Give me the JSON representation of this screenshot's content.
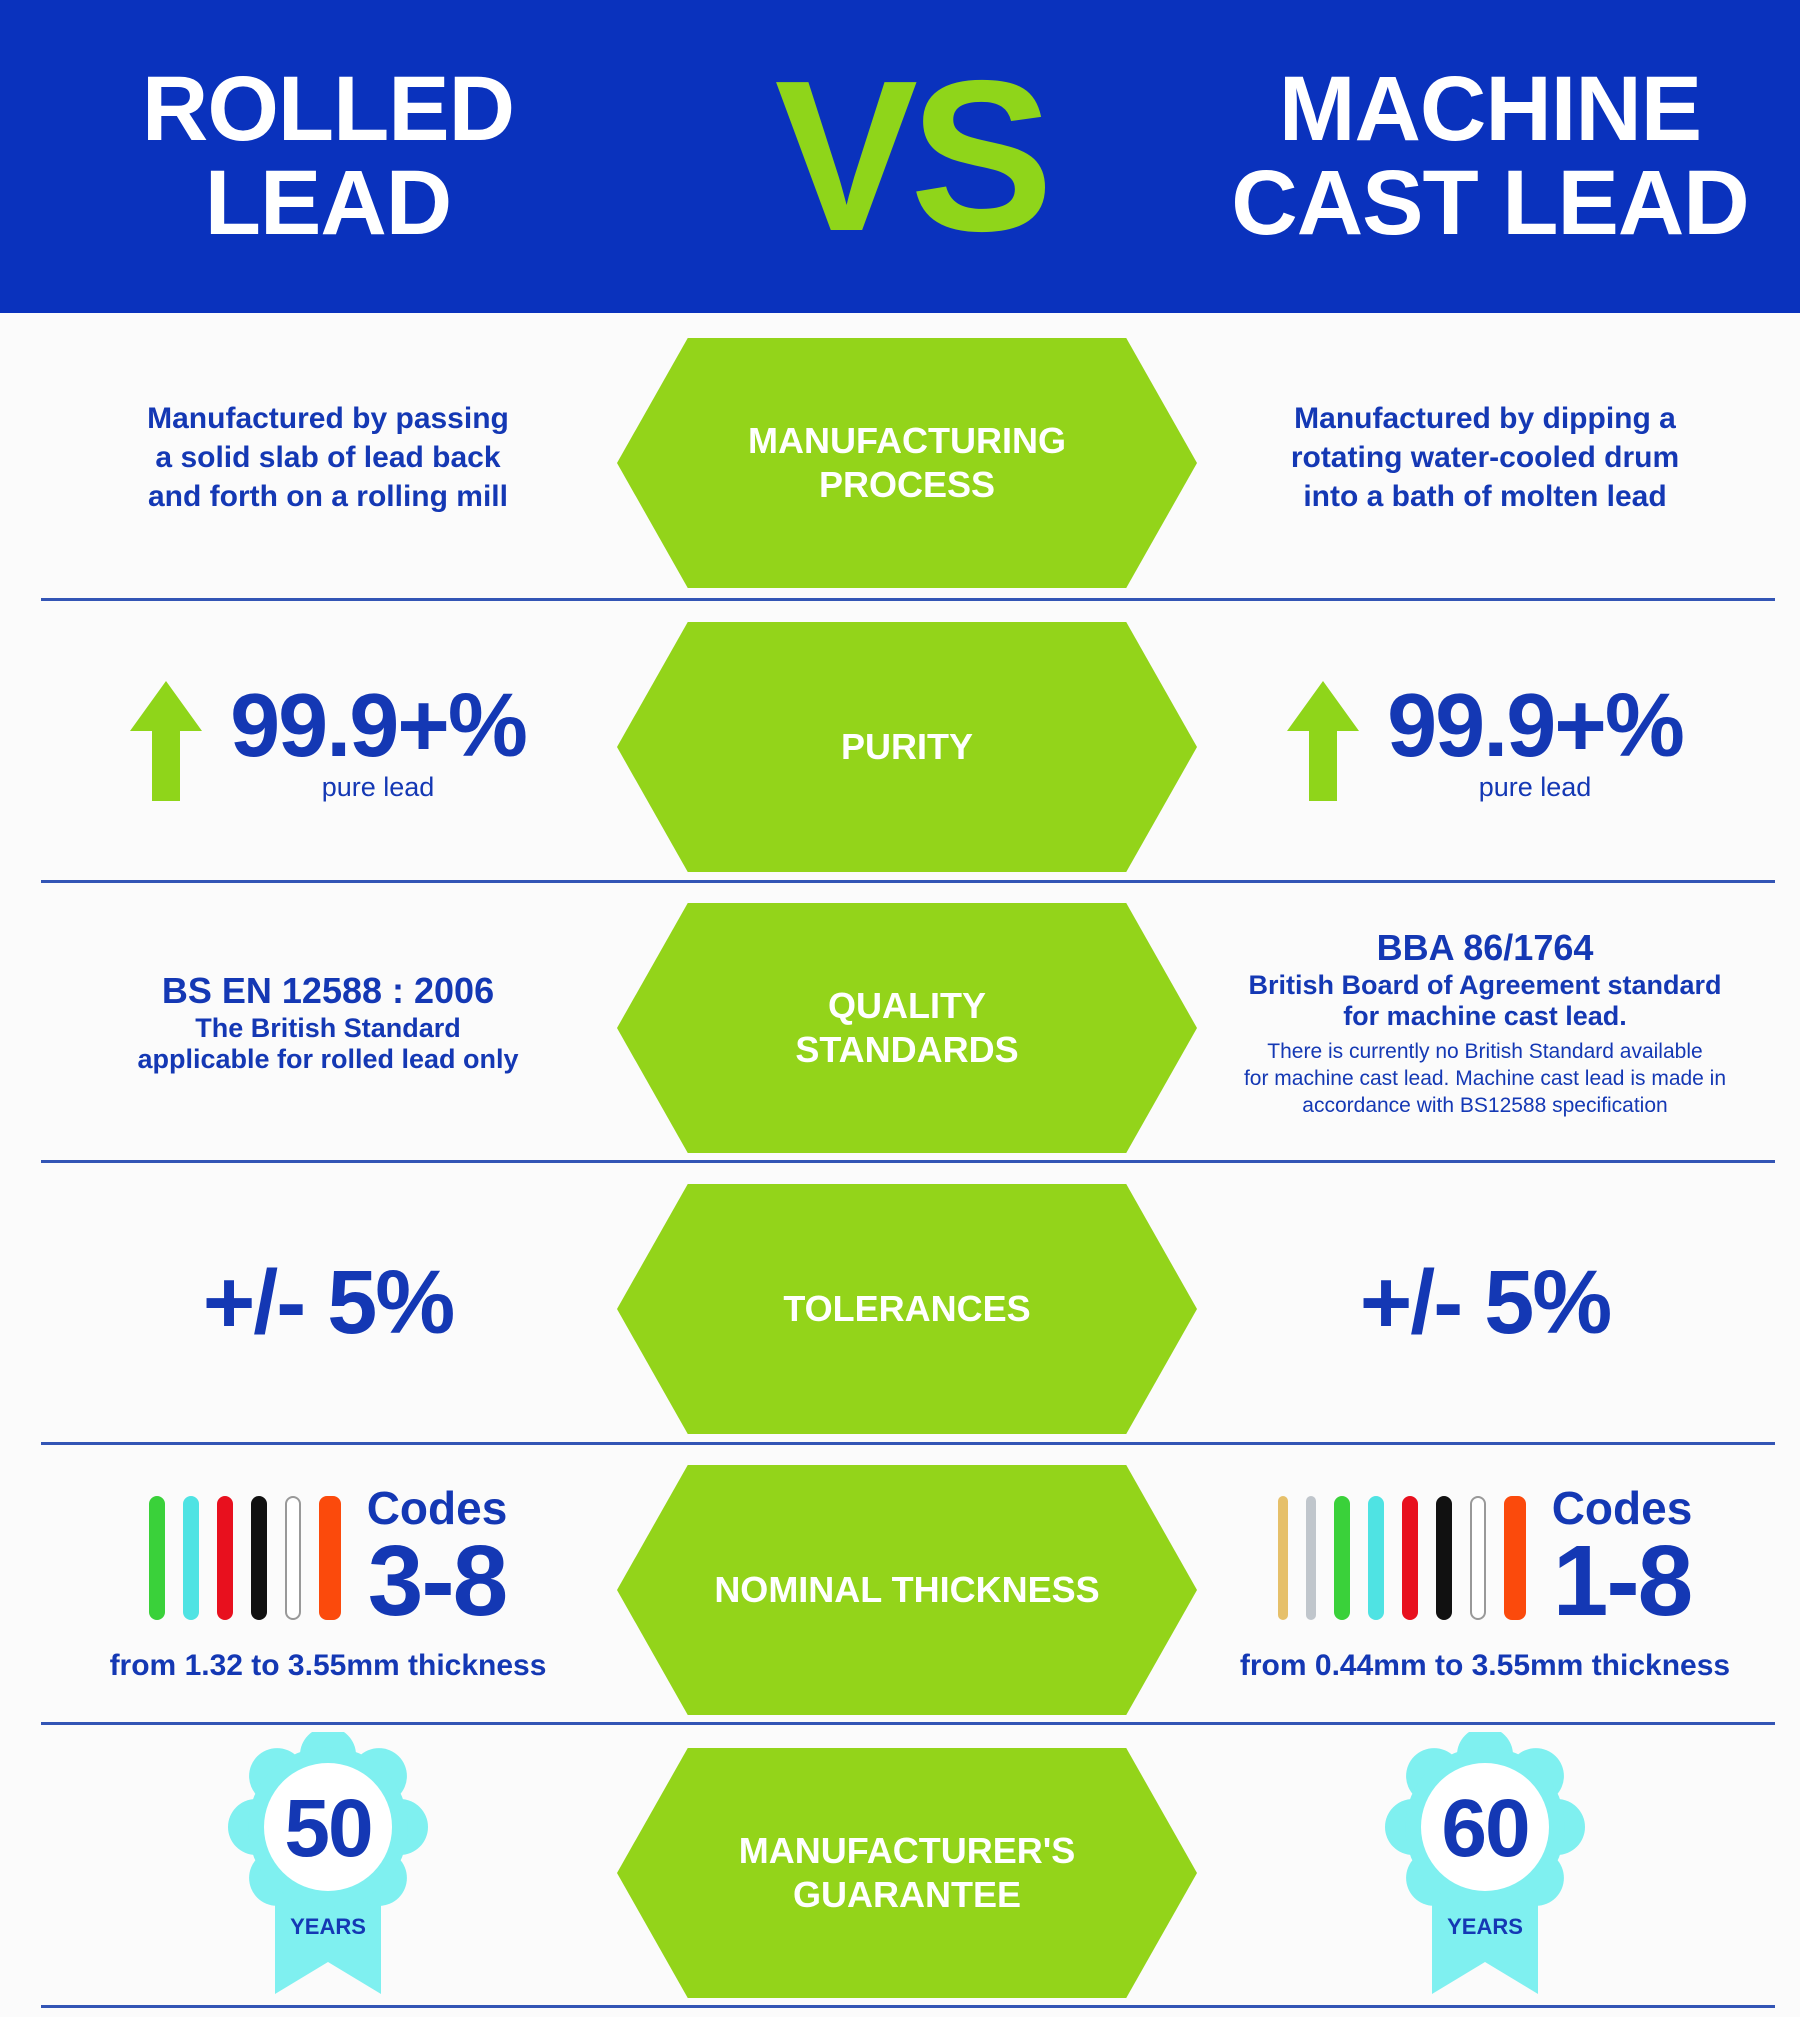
{
  "header": {
    "left_title": "ROLLED\nLEAD",
    "vs": "VS",
    "right_title": "MACHINE\nCAST LEAD"
  },
  "colors": {
    "brand_blue": "#0a32bd",
    "accent_green": "#93d41a",
    "badge_cyan": "#7ff0f0"
  },
  "rows": {
    "manufacturing": {
      "label": "MANUFACTURING\nPROCESS",
      "left": "Manufactured by passing\na solid slab of lead back\nand forth on a rolling mill",
      "right": "Manufactured by dipping a\nrotating water-cooled drum\ninto a bath of molten lead"
    },
    "purity": {
      "label": "PURITY",
      "left": {
        "value": "99.9+%",
        "caption": "pure lead",
        "icon": "up-arrow-icon"
      },
      "right": {
        "value": "99.9+%",
        "caption": "pure lead",
        "icon": "up-arrow-icon"
      }
    },
    "quality": {
      "label": "QUALITY\nSTANDARDS",
      "left": {
        "standard": "BS EN 12588 : 2006",
        "desc": "The British Standard\napplicable for rolled lead only"
      },
      "right": {
        "standard": "BBA 86/1764",
        "desc": "British Board of Agreement standard\nfor machine cast lead.",
        "note": "There is currently no British Standard available\nfor machine cast lead. Machine cast lead is made in\naccordance with BS12588 specification"
      }
    },
    "tolerances": {
      "label": "TOLERANCES",
      "left": "+/- 5%",
      "right": "+/- 5%"
    },
    "thickness": {
      "label": "NOMINAL THICKNESS",
      "left": {
        "codes_label": "Codes",
        "codes": "3-8",
        "range": "from 1.32 to 3.55mm thickness",
        "code_colors": [
          "#3ad13a",
          "#4fe3e3",
          "#e8101e",
          "#111111",
          "#ffffff",
          "#fb4a0c"
        ]
      },
      "right": {
        "codes_label": "Codes",
        "codes": "1-8",
        "range": "from 0.44mm to 3.55mm thickness",
        "code_colors": [
          "#e6c06a",
          "#c0c6cc",
          "#3ad13a",
          "#4fe3e3",
          "#e8101e",
          "#111111",
          "#ffffff",
          "#fb4a0c"
        ]
      }
    },
    "guarantee": {
      "label": "MANUFACTURER'S\nGUARANTEE",
      "left": {
        "years": "50",
        "unit": "YEARS"
      },
      "right": {
        "years": "60",
        "unit": "YEARS"
      }
    }
  }
}
